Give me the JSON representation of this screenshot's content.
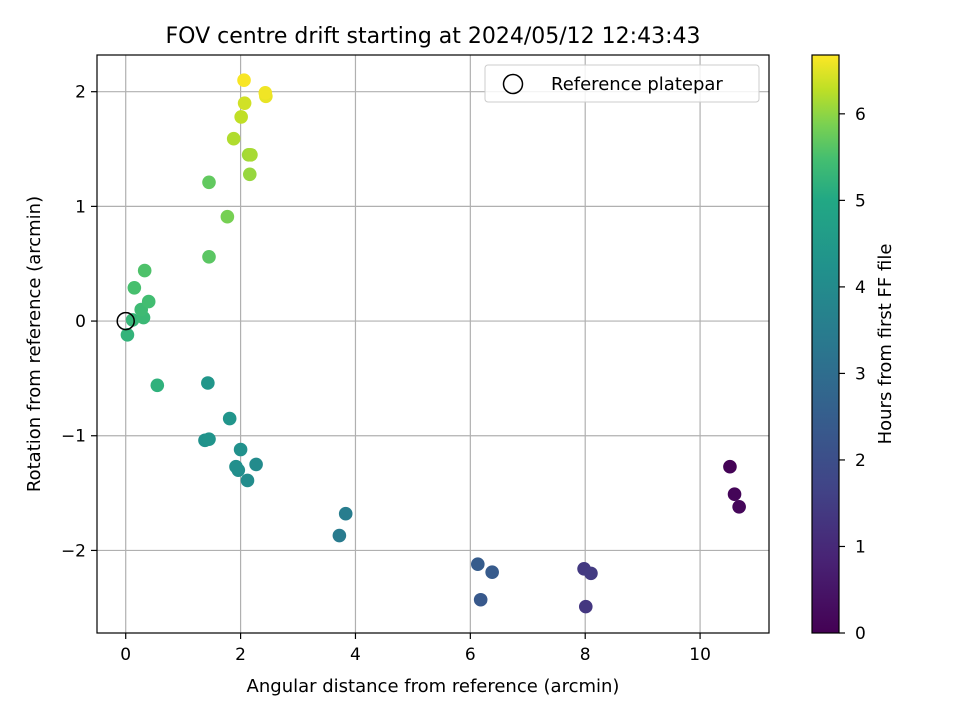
{
  "chart_data": {
    "type": "scatter",
    "title": "FOV centre drift starting at 2024/05/12 12:43:43",
    "xlabel": "Angular distance from reference (arcmin)",
    "ylabel": "Rotation from reference (arcmin)",
    "xlim": [
      -0.5,
      11.2
    ],
    "ylim": [
      -2.72,
      2.32
    ],
    "xticks": [
      0,
      2,
      4,
      6,
      8,
      10
    ],
    "xtick_labels": [
      "0",
      "2",
      "4",
      "6",
      "8",
      "10"
    ],
    "yticks": [
      -2,
      -1,
      0,
      1,
      2
    ],
    "ytick_labels": [
      "−2",
      "−1",
      "0",
      "1",
      "2"
    ],
    "grid": true,
    "legend": {
      "position": "top-right",
      "entries": [
        {
          "label": "Reference platepar",
          "marker": "hollow-circle",
          "color": "#000000"
        }
      ]
    },
    "reference_point": {
      "x": 0.0,
      "y": 0.0
    },
    "colorbar": {
      "label": "Hours from first FF file",
      "range": [
        0,
        6.68
      ],
      "ticks": [
        0,
        1,
        2,
        3,
        4,
        5,
        6
      ],
      "tick_labels": [
        "0",
        "1",
        "2",
        "3",
        "4",
        "5",
        "6"
      ],
      "colormap": "viridis"
    },
    "points": [
      {
        "x": 10.52,
        "y": -1.27,
        "hours": 0.05
      },
      {
        "x": 10.6,
        "y": -1.51,
        "hours": 0.1
      },
      {
        "x": 10.68,
        "y": -1.62,
        "hours": 0.15
      },
      {
        "x": 8.01,
        "y": -2.49,
        "hours": 1.35
      },
      {
        "x": 7.98,
        "y": -2.16,
        "hours": 1.4
      },
      {
        "x": 8.1,
        "y": -2.2,
        "hours": 1.45
      },
      {
        "x": 6.18,
        "y": -2.43,
        "hours": 2.35
      },
      {
        "x": 6.38,
        "y": -2.19,
        "hours": 2.4
      },
      {
        "x": 6.13,
        "y": -2.12,
        "hours": 2.45
      },
      {
        "x": 3.72,
        "y": -1.87,
        "hours": 3.45
      },
      {
        "x": 3.83,
        "y": -1.68,
        "hours": 3.5
      },
      {
        "x": 2.27,
        "y": -1.25,
        "hours": 4.0
      },
      {
        "x": 2.12,
        "y": -1.39,
        "hours": 4.05
      },
      {
        "x": 1.96,
        "y": -1.3,
        "hours": 4.1
      },
      {
        "x": 1.92,
        "y": -1.27,
        "hours": 4.15
      },
      {
        "x": 2.0,
        "y": -1.12,
        "hours": 4.2
      },
      {
        "x": 1.38,
        "y": -1.04,
        "hours": 4.25
      },
      {
        "x": 1.45,
        "y": -1.03,
        "hours": 4.3
      },
      {
        "x": 1.81,
        "y": -0.85,
        "hours": 4.35
      },
      {
        "x": 1.43,
        "y": -0.54,
        "hours": 4.4
      },
      {
        "x": 0.55,
        "y": -0.56,
        "hours": 5.2
      },
      {
        "x": 0.03,
        "y": -0.12,
        "hours": 5.25
      },
      {
        "x": 0.12,
        "y": 0.01,
        "hours": 5.3
      },
      {
        "x": 0.31,
        "y": 0.03,
        "hours": 5.35
      },
      {
        "x": 0.27,
        "y": 0.1,
        "hours": 5.4
      },
      {
        "x": 0.4,
        "y": 0.17,
        "hours": 5.45
      },
      {
        "x": 0.15,
        "y": 0.29,
        "hours": 5.5
      },
      {
        "x": 0.33,
        "y": 0.44,
        "hours": 5.55
      },
      {
        "x": 1.45,
        "y": 0.56,
        "hours": 5.65
      },
      {
        "x": 1.77,
        "y": 0.91,
        "hours": 5.85
      },
      {
        "x": 1.45,
        "y": 1.21,
        "hours": 5.7
      },
      {
        "x": 2.16,
        "y": 1.28,
        "hours": 6.05
      },
      {
        "x": 2.14,
        "y": 1.45,
        "hours": 6.1
      },
      {
        "x": 2.18,
        "y": 1.45,
        "hours": 6.15
      },
      {
        "x": 1.88,
        "y": 1.59,
        "hours": 6.2
      },
      {
        "x": 2.01,
        "y": 1.78,
        "hours": 6.3
      },
      {
        "x": 2.07,
        "y": 1.9,
        "hours": 6.4
      },
      {
        "x": 2.44,
        "y": 1.96,
        "hours": 6.55
      },
      {
        "x": 2.43,
        "y": 1.99,
        "hours": 6.6
      },
      {
        "x": 2.06,
        "y": 2.1,
        "hours": 6.65
      }
    ]
  }
}
